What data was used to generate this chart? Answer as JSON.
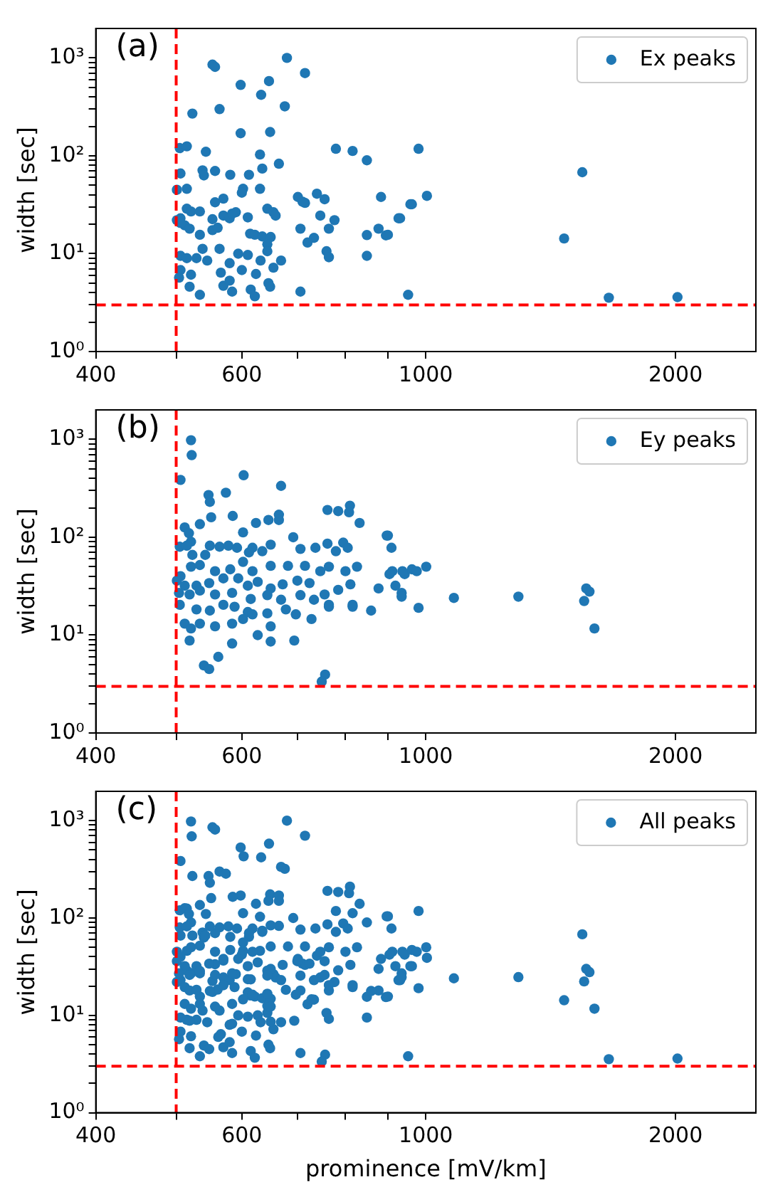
{
  "chart_data": [
    {
      "type": "scatter",
      "annotations": [
        "(a)"
      ],
      "ylabel": "width [sec]",
      "log": "xy",
      "grid": false,
      "legend": "top right",
      "marker": "circle",
      "xlim": [
        400,
        2500
      ],
      "ylim": [
        1,
        2000
      ],
      "xticks": [
        400,
        {
          "value": 500,
          "label": null
        },
        600,
        {
          "value": 700,
          "label": null
        },
        {
          "value": 800,
          "label": null
        },
        {
          "value": 900,
          "label": null
        },
        1000,
        2000
      ],
      "yticks": [
        {
          "value": 1,
          "label": "10⁰"
        },
        {
          "value": 2,
          "label": null
        },
        {
          "value": 3,
          "label": null
        },
        {
          "value": 4,
          "label": null
        },
        {
          "value": 5,
          "label": null
        },
        {
          "value": 6,
          "label": null
        },
        {
          "value": 7,
          "label": null
        },
        {
          "value": 8,
          "label": null
        },
        {
          "value": 9,
          "label": null
        },
        {
          "value": 10,
          "label": "10¹"
        },
        {
          "value": 20,
          "label": null
        },
        {
          "value": 30,
          "label": null
        },
        {
          "value": 40,
          "label": null
        },
        {
          "value": 50,
          "label": null
        },
        {
          "value": 60,
          "label": null
        },
        {
          "value": 70,
          "label": null
        },
        {
          "value": 80,
          "label": null
        },
        {
          "value": 90,
          "label": null
        },
        {
          "value": 100,
          "label": "10²"
        },
        {
          "value": 200,
          "label": null
        },
        {
          "value": 300,
          "label": null
        },
        {
          "value": 400,
          "label": null
        },
        {
          "value": 500,
          "label": null
        },
        {
          "value": 600,
          "label": null
        },
        {
          "value": 700,
          "label": null
        },
        {
          "value": 800,
          "label": null
        },
        {
          "value": 900,
          "label": null
        },
        {
          "value": 1000,
          "label": "10³"
        }
      ],
      "ref_lines": [
        {
          "axis": "x",
          "value": 500,
          "color": "#ff0000",
          "line_style": "dashed"
        },
        {
          "axis": "y",
          "value": 3,
          "color": "#ff0000",
          "line_style": "dashed"
        }
      ],
      "series": [
        {
          "name": "Ex peaks",
          "color": "#1f77b4",
          "x": [
            553,
            557,
            680,
            715,
            598,
            633,
            647,
            676,
            649,
            598,
            564,
            523,
            505,
            515,
            543,
            779,
            816,
            849,
            631,
            665,
            635,
            612,
            581,
            538,
            557,
            540,
            506,
            515,
            501,
            602,
            631,
            570,
            557,
            600,
            701,
            715,
            739,
            883,
            962,
            980,
            1003,
            958,
            927,
            895,
            952,
            1468,
            1544,
            1662,
            2011,
            515,
            521,
            534,
            553,
            570,
            580,
            590,
            610,
            584,
            644,
            655,
            659,
            506,
            501,
            512,
            519,
            506,
            534,
            553,
            561,
            614,
            622,
            635,
            650,
            644,
            594,
            538,
            564,
            506,
            515,
            529,
            545,
            580,
            600,
            624,
            655,
            506,
            521,
            519,
            504,
            566,
            570,
            584,
            580,
            646,
            649,
            615,
            622,
            534,
            706,
            610,
            632,
            669,
            644,
            706,
            733,
            764,
            746,
            776,
            759,
            764,
            720,
            849,
            849,
            877,
            900,
            931,
            755,
            710
          ],
          "values": [
            855,
            810,
            1000,
            700,
            530,
            420,
            580,
            320,
            175,
            170,
            300,
            270,
            120,
            125,
            110,
            118,
            112,
            90,
            103,
            83,
            74,
            64,
            64,
            71,
            70,
            63,
            66,
            46,
            45,
            46,
            46,
            36.5,
            33.5,
            42,
            38,
            33,
            41,
            38,
            32,
            118,
            39,
            32,
            23,
            15.4,
            3.8,
            14.3,
            68,
            3.55,
            3.6,
            28.8,
            27,
            27,
            22.5,
            24.5,
            23,
            26.5,
            23.5,
            25.7,
            28.8,
            26.5,
            24.5,
            23,
            22,
            19.5,
            18,
            20.6,
            15.6,
            17.4,
            18.4,
            16,
            15.6,
            15,
            14.8,
            12.5,
            10,
            11.2,
            11.2,
            9.5,
            9,
            9,
            8.5,
            8,
            6.8,
            6.2,
            7.2,
            6.8,
            6.1,
            4.6,
            5.7,
            6.4,
            4.7,
            4.1,
            5.3,
            5,
            4.6,
            4.3,
            3.67,
            3.8,
            4.1,
            9.7,
            8.5,
            8.5,
            10.6,
            18,
            14.5,
            18,
            24.5,
            22,
            10.6,
            9.2,
            13,
            15.5,
            9.5,
            18,
            15.6,
            23,
            36,
            34
          ]
        }
      ]
    },
    {
      "type": "scatter",
      "annotations": [
        "(b)"
      ],
      "ylabel": "width [sec]",
      "log": "xy",
      "grid": false,
      "legend": "top right",
      "marker": "circle",
      "xlim": [
        400,
        2500
      ],
      "ylim": [
        1,
        2000
      ],
      "xticks": [
        400,
        {
          "value": 500,
          "label": null
        },
        600,
        {
          "value": 700,
          "label": null
        },
        {
          "value": 800,
          "label": null
        },
        {
          "value": 900,
          "label": null
        },
        1000,
        2000
      ],
      "yticks": [
        {
          "value": 1,
          "label": "10⁰"
        },
        {
          "value": 2,
          "label": null
        },
        {
          "value": 3,
          "label": null
        },
        {
          "value": 4,
          "label": null
        },
        {
          "value": 5,
          "label": null
        },
        {
          "value": 6,
          "label": null
        },
        {
          "value": 7,
          "label": null
        },
        {
          "value": 8,
          "label": null
        },
        {
          "value": 9,
          "label": null
        },
        {
          "value": 10,
          "label": "10¹"
        },
        {
          "value": 20,
          "label": null
        },
        {
          "value": 30,
          "label": null
        },
        {
          "value": 40,
          "label": null
        },
        {
          "value": 50,
          "label": null
        },
        {
          "value": 60,
          "label": null
        },
        {
          "value": 70,
          "label": null
        },
        {
          "value": 80,
          "label": null
        },
        {
          "value": 90,
          "label": null
        },
        {
          "value": 100,
          "label": "10²"
        },
        {
          "value": 200,
          "label": null
        },
        {
          "value": 300,
          "label": null
        },
        {
          "value": 400,
          "label": null
        },
        {
          "value": 500,
          "label": null
        },
        {
          "value": 600,
          "label": null
        },
        {
          "value": 700,
          "label": null
        },
        {
          "value": 800,
          "label": null
        },
        {
          "value": 900,
          "label": null
        },
        {
          "value": 1000,
          "label": "10³"
        }
      ],
      "ref_lines": [
        {
          "axis": "x",
          "value": 500,
          "color": "#ff0000",
          "line_style": "dashed"
        },
        {
          "axis": "y",
          "value": 3,
          "color": "#ff0000",
          "line_style": "dashed"
        }
      ],
      "series": [
        {
          "name": "Ey peaks",
          "color": "#1f77b4",
          "x": [
            521,
            522,
            506,
            603,
            669,
            547,
            549,
            574,
            512,
            518,
            521,
            523,
            534,
            551,
            585,
            602,
            624,
            646,
            665,
            665,
            692,
            761,
            784,
            810,
            808,
            832,
            795,
            761,
            736,
            706,
            779,
            805,
            505,
            515,
            549,
            564,
            578,
            592,
            618,
            650,
            635,
            612,
            542,
            602,
            521,
            534,
            557,
            581,
            618,
            650,
            682,
            715,
            746,
            764,
            800,
            826,
            506,
            501,
            512,
            529,
            548,
            570,
            594,
            610,
            627,
            650,
            672,
            700,
            724,
            755,
            784,
            811,
            504,
            519,
            534,
            557,
            584,
            615,
            644,
            669,
            706,
            733,
            764,
            816,
            859,
            877,
            919,
            911,
            943,
            900,
            505,
            529,
            549,
            570,
            588,
            610,
            618,
            644,
            678,
            697,
            728,
            764,
            816,
            512,
            521,
            534,
            557,
            584,
            602,
            650,
            627,
            650,
            694,
            519,
            584,
            540,
            548,
            562,
            756,
            749,
            962,
            897,
            909,
            937,
            935,
            935,
            980,
            975,
            1001,
            904,
            1081,
            1293,
            1561,
            1575,
            1552,
            1597
          ],
          "values": [
            980,
            690,
            385,
            430,
            335,
            270,
            230,
            285,
            126,
            110,
            90,
            66,
            136,
            160,
            165,
            112,
            140,
            150,
            170,
            150,
            100,
            190,
            185,
            210,
            180,
            140,
            88,
            86,
            78,
            76,
            72,
            78,
            80,
            82,
            82,
            80,
            82,
            78,
            78,
            84,
            72,
            70,
            66,
            56,
            50,
            52,
            45,
            47,
            45,
            51,
            51,
            51,
            45,
            50,
            45,
            50,
            40,
            36,
            32,
            32,
            34,
            38,
            38,
            32,
            35,
            30,
            33,
            36,
            34,
            26,
            29,
            33,
            27,
            26,
            28.5,
            26,
            27,
            23.4,
            25.6,
            23,
            25.6,
            23,
            20.4,
            19.5,
            17.8,
            30,
            32,
            45,
            42,
            104,
            20.4,
            18.3,
            17.8,
            20.4,
            19.5,
            17.2,
            16.3,
            16.7,
            18.3,
            16.3,
            14.6,
            19.5,
            20.4,
            13.1,
            11.7,
            13.1,
            12.3,
            13.1,
            14.6,
            12.3,
            10,
            8.6,
            8.8,
            8.8,
            8.2,
            4.9,
            4.5,
            6,
            3.95,
            3.35,
            47,
            104,
            78,
            45,
            27,
            24.7,
            19,
            45,
            50,
            42,
            24,
            24.7,
            30,
            27.8,
            22.3,
            11.7
          ]
        }
      ]
    },
    {
      "type": "scatter",
      "annotations": [
        "(c)"
      ],
      "xlabel": "prominence [mV/km]",
      "ylabel": "width [sec]",
      "log": "xy",
      "grid": false,
      "legend": "top right",
      "marker": "circle",
      "xlim": [
        400,
        2500
      ],
      "ylim": [
        1,
        2000
      ],
      "xticks": [
        400,
        {
          "value": 500,
          "label": null
        },
        600,
        {
          "value": 700,
          "label": null
        },
        {
          "value": 800,
          "label": null
        },
        {
          "value": 900,
          "label": null
        },
        1000,
        2000
      ],
      "yticks": [
        {
          "value": 1,
          "label": "10⁰"
        },
        {
          "value": 2,
          "label": null
        },
        {
          "value": 3,
          "label": null
        },
        {
          "value": 4,
          "label": null
        },
        {
          "value": 5,
          "label": null
        },
        {
          "value": 6,
          "label": null
        },
        {
          "value": 7,
          "label": null
        },
        {
          "value": 8,
          "label": null
        },
        {
          "value": 9,
          "label": null
        },
        {
          "value": 10,
          "label": "10¹"
        },
        {
          "value": 20,
          "label": null
        },
        {
          "value": 30,
          "label": null
        },
        {
          "value": 40,
          "label": null
        },
        {
          "value": 50,
          "label": null
        },
        {
          "value": 60,
          "label": null
        },
        {
          "value": 70,
          "label": null
        },
        {
          "value": 80,
          "label": null
        },
        {
          "value": 90,
          "label": null
        },
        {
          "value": 100,
          "label": "10²"
        },
        {
          "value": 200,
          "label": null
        },
        {
          "value": 300,
          "label": null
        },
        {
          "value": 400,
          "label": null
        },
        {
          "value": 500,
          "label": null
        },
        {
          "value": 600,
          "label": null
        },
        {
          "value": 700,
          "label": null
        },
        {
          "value": 800,
          "label": null
        },
        {
          "value": 900,
          "label": null
        },
        {
          "value": 1000,
          "label": "10³"
        }
      ],
      "ref_lines": [
        {
          "axis": "x",
          "value": 500,
          "color": "#ff0000",
          "line_style": "dashed"
        },
        {
          "axis": "y",
          "value": 3,
          "color": "#ff0000",
          "line_style": "dashed"
        }
      ],
      "series": [
        {
          "name": "All peaks",
          "color": "#1f77b4",
          "x": [
            553,
            557,
            680,
            715,
            598,
            633,
            647,
            676,
            649,
            598,
            564,
            523,
            505,
            515,
            543,
            779,
            816,
            849,
            631,
            665,
            635,
            612,
            581,
            538,
            557,
            540,
            506,
            515,
            501,
            602,
            631,
            570,
            557,
            600,
            701,
            715,
            739,
            883,
            962,
            980,
            1003,
            958,
            927,
            895,
            952,
            1468,
            1544,
            1662,
            2011,
            515,
            521,
            534,
            553,
            570,
            580,
            590,
            610,
            644,
            655,
            659,
            506,
            501,
            512,
            519,
            534,
            553,
            561,
            614,
            622,
            635,
            650,
            644,
            594,
            538,
            564,
            506,
            515,
            529,
            545,
            580,
            600,
            624,
            655,
            506,
            521,
            519,
            504,
            566,
            570,
            584,
            580,
            646,
            649,
            615,
            622,
            534,
            706,
            610,
            632,
            669,
            644,
            706,
            733,
            764,
            746,
            776,
            759,
            764,
            720,
            849,
            849,
            877,
            900,
            931,
            755,
            710,
            521,
            522,
            506,
            603,
            669,
            547,
            549,
            574,
            512,
            518,
            521,
            523,
            534,
            551,
            585,
            602,
            624,
            646,
            665,
            665,
            692,
            761,
            784,
            810,
            808,
            832,
            795,
            761,
            736,
            706,
            779,
            805,
            505,
            515,
            549,
            564,
            578,
            592,
            618,
            650,
            635,
            612,
            542,
            602,
            521,
            534,
            557,
            581,
            618,
            650,
            682,
            715,
            746,
            764,
            800,
            826,
            506,
            501,
            512,
            529,
            548,
            570,
            594,
            610,
            627,
            650,
            672,
            700,
            724,
            755,
            784,
            811,
            504,
            519,
            534,
            557,
            584,
            615,
            644,
            669,
            706,
            733,
            764,
            816,
            859,
            877,
            919,
            911,
            943,
            900,
            529,
            549,
            570,
            588,
            610,
            618,
            644,
            678,
            697,
            728,
            816,
            512,
            521,
            534,
            557,
            584,
            602,
            650,
            627,
            650,
            694,
            519,
            584,
            540,
            548,
            562,
            756,
            749,
            962,
            897,
            909,
            937,
            935,
            935,
            980,
            975,
            1001,
            904,
            1081,
            1293,
            1561,
            1575,
            1552,
            1597
          ],
          "values": [
            855,
            810,
            1000,
            700,
            530,
            420,
            580,
            320,
            175,
            170,
            300,
            270,
            120,
            125,
            110,
            118,
            112,
            90,
            103,
            83,
            74,
            64,
            64,
            71,
            70,
            63,
            66,
            46,
            45,
            46,
            46,
            36.5,
            33.5,
            42,
            38,
            33,
            41,
            38,
            32,
            118,
            39,
            32,
            23,
            15.4,
            3.8,
            14.3,
            68,
            3.55,
            3.6,
            28.8,
            27,
            27,
            22.5,
            24.5,
            23,
            26.5,
            23.5,
            28.8,
            26.5,
            24.5,
            23,
            22,
            19.5,
            18,
            15.6,
            17.4,
            18.4,
            16,
            15.6,
            15,
            14.8,
            12.5,
            10,
            11.2,
            11.2,
            9.5,
            9,
            9,
            8.5,
            8,
            6.8,
            6.2,
            7.2,
            6.8,
            6.1,
            4.6,
            5.7,
            6.4,
            4.7,
            4.1,
            5.3,
            5,
            4.6,
            4.3,
            3.67,
            3.8,
            4.1,
            9.7,
            8.5,
            8.5,
            10.6,
            18,
            14.5,
            18,
            24.5,
            22,
            10.6,
            9.2,
            13,
            15.5,
            9.5,
            18,
            15.6,
            23,
            36,
            34,
            980,
            690,
            385,
            430,
            335,
            270,
            230,
            285,
            126,
            110,
            90,
            66,
            136,
            160,
            165,
            112,
            140,
            150,
            170,
            150,
            100,
            190,
            185,
            210,
            180,
            140,
            88,
            86,
            78,
            76,
            72,
            78,
            80,
            82,
            82,
            80,
            82,
            78,
            78,
            84,
            72,
            70,
            66,
            56,
            50,
            52,
            45,
            47,
            45,
            51,
            51,
            51,
            45,
            50,
            45,
            50,
            40,
            36,
            32,
            32,
            34,
            38,
            38,
            32,
            35,
            30,
            33,
            36,
            34,
            26,
            29,
            33,
            27,
            26,
            28.5,
            26,
            27,
            23.4,
            25.6,
            23,
            25.6,
            23,
            20.4,
            19.5,
            17.8,
            30,
            32,
            45,
            42,
            104,
            18.3,
            17.8,
            20.4,
            19.5,
            17.2,
            16.3,
            16.7,
            18.3,
            16.3,
            14.6,
            20.4,
            13.1,
            11.7,
            13.1,
            12.3,
            13.1,
            14.6,
            12.3,
            10,
            8.6,
            8.8,
            8.8,
            8.2,
            4.9,
            4.5,
            6,
            3.95,
            3.35,
            47,
            104,
            78,
            45,
            27,
            24.7,
            19,
            45,
            50,
            42,
            24,
            24.7,
            30,
            27.8,
            22.3,
            11.7
          ]
        }
      ]
    }
  ]
}
